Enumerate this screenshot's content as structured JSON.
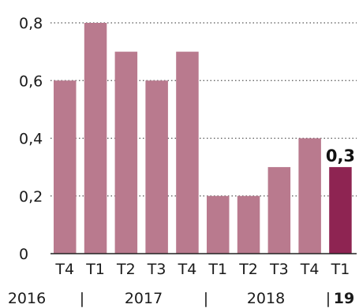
{
  "chart_data": {
    "type": "bar",
    "categories": [
      "T4",
      "T1",
      "T2",
      "T3",
      "T4",
      "T1",
      "T2",
      "T3",
      "T4",
      "T1"
    ],
    "values": [
      0.6,
      0.8,
      0.7,
      0.6,
      0.7,
      0.2,
      0.2,
      0.3,
      0.4,
      0.3
    ],
    "ylim": [
      0,
      0.8
    ],
    "yticks": [
      0,
      0.2,
      0.4,
      0.6,
      0.8
    ],
    "ytick_labels": [
      "0",
      "0,2",
      "0,4",
      "0,6",
      "0,8"
    ],
    "grid": "horizontal dotted",
    "years": [
      {
        "label": "2016",
        "sep_after": "|"
      },
      {
        "label": "2017",
        "sep_after": "|"
      },
      {
        "label": "2018",
        "sep_after": "|"
      },
      {
        "label": "19",
        "bold": true
      }
    ],
    "highlight_index": 9,
    "highlight_label": "0,3",
    "colors": {
      "bar": "#b97a8e",
      "highlight": "#8e2452",
      "grid": "#555555",
      "axis": "#222222"
    }
  }
}
